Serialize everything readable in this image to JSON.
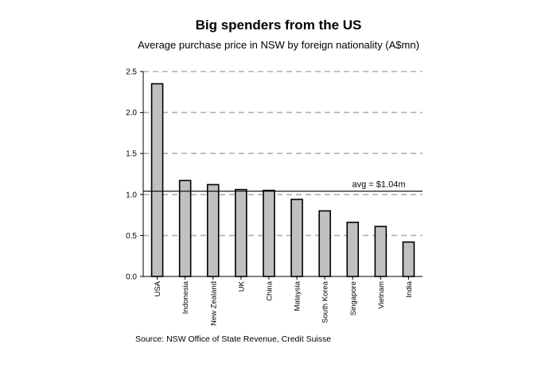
{
  "chart_data": {
    "type": "bar",
    "title": "Big spenders from the US",
    "subtitle": "Average purchase price in NSW by foreign nationality (A$mn)",
    "categories": [
      "USA",
      "Indonesia",
      "New Zealand",
      "UK",
      "China",
      "Malaysia",
      "South Korea",
      "Singapore",
      "Vietnam",
      "India"
    ],
    "values": [
      2.35,
      1.17,
      1.12,
      1.06,
      1.05,
      0.94,
      0.8,
      0.66,
      0.61,
      0.42
    ],
    "ylim": [
      0,
      2.5
    ],
    "yticks": [
      "0.0",
      "0.5",
      "1.0",
      "1.5",
      "2.0",
      "2.5"
    ],
    "xlabel": "",
    "ylabel": "",
    "grid": "dashed horizontal",
    "average": {
      "value": 1.04,
      "label": "avg = $1.04m"
    },
    "source": "Source: NSW Office of State Revenue, Credit Suisse",
    "colors": {
      "bar_fill": "#c0c0c0",
      "bar_stroke": "#000000",
      "grid": "#b0b0b0"
    }
  }
}
